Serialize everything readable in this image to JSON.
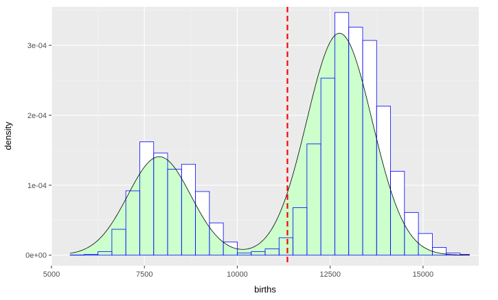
{
  "chart_data": {
    "type": "histogram",
    "xlabel": "births",
    "ylabel": "density",
    "xlim": [
      5000,
      16500
    ],
    "ylim": [
      -1.5e-05,
      0.000355
    ],
    "x_ticks": [
      {
        "value": 5000,
        "label": "5000"
      },
      {
        "value": 7500,
        "label": "7500"
      },
      {
        "value": 10000,
        "label": "10000"
      },
      {
        "value": 12500,
        "label": "12500"
      },
      {
        "value": 15000,
        "label": "15000"
      }
    ],
    "y_ticks": [
      {
        "value": 0,
        "label": "0e+00"
      },
      {
        "value": 0.0001,
        "label": "1e-04"
      },
      {
        "value": 0.0002,
        "label": "2e-04"
      },
      {
        "value": 0.0003,
        "label": "3e-04"
      }
    ],
    "grid": true,
    "bin_width": 375,
    "bins": [
      {
        "x0": 5500,
        "x1": 5875,
        "density": 3e-07
      },
      {
        "x0": 5875,
        "x1": 6250,
        "density": 1e-06
      },
      {
        "x0": 6250,
        "x1": 6625,
        "density": 5e-06
      },
      {
        "x0": 6625,
        "x1": 7000,
        "density": 3.7e-05
      },
      {
        "x0": 7000,
        "x1": 7375,
        "density": 9.2e-05
      },
      {
        "x0": 7375,
        "x1": 7750,
        "density": 0.000162
      },
      {
        "x0": 7750,
        "x1": 8125,
        "density": 0.000146
      },
      {
        "x0": 8125,
        "x1": 8500,
        "density": 0.000123
      },
      {
        "x0": 8500,
        "x1": 8875,
        "density": 0.00013
      },
      {
        "x0": 8875,
        "x1": 9250,
        "density": 9.1e-05
      },
      {
        "x0": 9250,
        "x1": 9625,
        "density": 4.6e-05
      },
      {
        "x0": 9625,
        "x1": 10000,
        "density": 1.9e-05
      },
      {
        "x0": 10000,
        "x1": 10375,
        "density": 3e-06
      },
      {
        "x0": 10375,
        "x1": 10750,
        "density": 5e-06
      },
      {
        "x0": 10750,
        "x1": 11125,
        "density": 9e-06
      },
      {
        "x0": 11125,
        "x1": 11500,
        "density": 2.5e-05
      },
      {
        "x0": 11500,
        "x1": 11875,
        "density": 6.8e-05
      },
      {
        "x0": 11875,
        "x1": 12250,
        "density": 0.000159
      },
      {
        "x0": 12250,
        "x1": 12625,
        "density": 0.000253
      },
      {
        "x0": 12625,
        "x1": 13000,
        "density": 0.000347
      },
      {
        "x0": 13000,
        "x1": 13375,
        "density": 0.000326
      },
      {
        "x0": 13375,
        "x1": 13750,
        "density": 0.000307
      },
      {
        "x0": 13750,
        "x1": 14125,
        "density": 0.000213
      },
      {
        "x0": 14125,
        "x1": 14500,
        "density": 0.00012
      },
      {
        "x0": 14500,
        "x1": 14875,
        "density": 6.1e-05
      },
      {
        "x0": 14875,
        "x1": 15250,
        "density": 3.1e-05
      },
      {
        "x0": 15250,
        "x1": 15625,
        "density": 1.1e-05
      },
      {
        "x0": 15625,
        "x1": 16000,
        "density": 3e-06
      },
      {
        "x0": 16000,
        "x1": 16250,
        "density": 1e-06
      }
    ],
    "density_curve": {
      "x_range": [
        5500,
        16250
      ],
      "components": [
        {
          "weight": 0.3,
          "mean": 7900,
          "sd": 850
        },
        {
          "weight": 0.7,
          "mean": 12750,
          "sd": 880
        }
      ]
    },
    "vline": {
      "x": 11350,
      "style": "dashed"
    },
    "colors": {
      "panel_background": "#ebebeb",
      "grid_major": "#ffffff",
      "grid_minor": "#f5f5f5",
      "bar_outline": "#0000ff",
      "bar_fill": "#ffffff",
      "density_fill": "#ccffcc",
      "density_line": "#000000",
      "vline": "#ff0000"
    }
  }
}
